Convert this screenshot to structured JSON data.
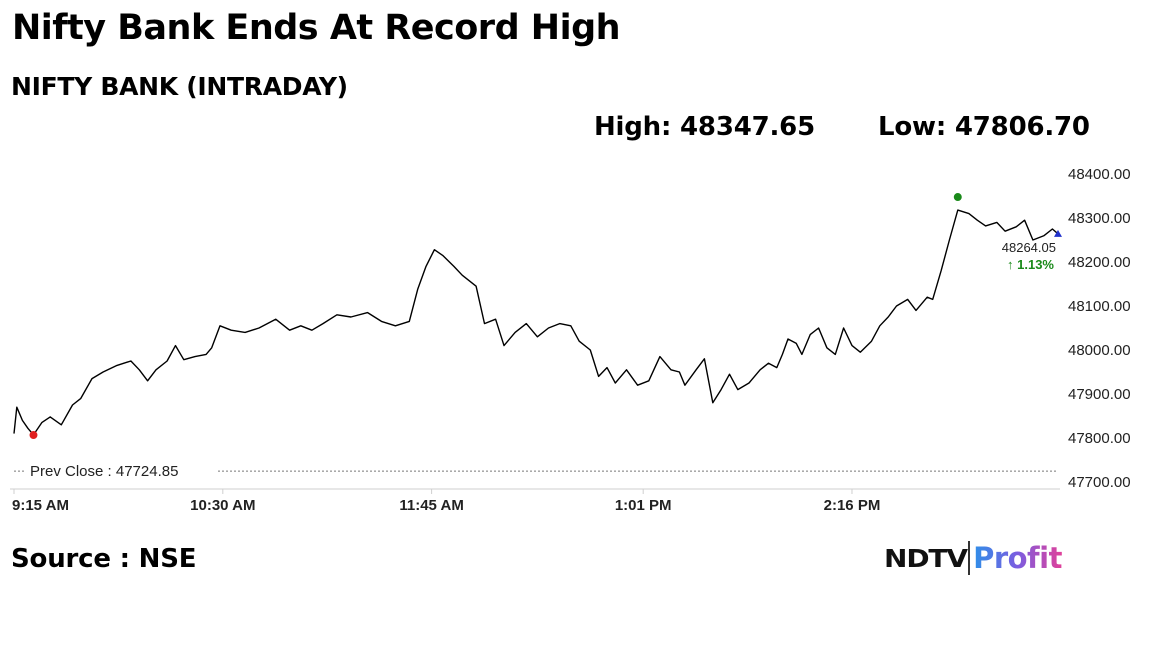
{
  "headline": "Nifty Bank Ends At Record High",
  "subtitle": "NIFTY BANK (INTRADAY)",
  "stats": {
    "high_label": "High: 48347.65",
    "low_label": "Low: 47806.70"
  },
  "source": "Source : NSE",
  "logo": {
    "ndtv": "NDTV",
    "profit": "Profit",
    "colors": {
      "ndtv": "#111111",
      "profit_start": "#2f8fe8",
      "profit_end": "#e0419a"
    }
  },
  "chart_data": {
    "type": "line",
    "title": "NIFTY BANK (INTRADAY)",
    "xlabel": "",
    "ylabel": "",
    "ylim": [
      47700,
      48400
    ],
    "y_ticks": [
      "47700.00",
      "47800.00",
      "47900.00",
      "48000.00",
      "48100.00",
      "48200.00",
      "48300.00",
      "48400.00"
    ],
    "x_ticks": [
      {
        "time": "9:15",
        "label": "9:15 AM"
      },
      {
        "time": "10:30",
        "label": "10:30 AM"
      },
      {
        "time": "11:45",
        "label": "11:45 AM"
      },
      {
        "time": "13:01",
        "label": "1:01 PM"
      },
      {
        "time": "14:16",
        "label": "2:16 PM"
      }
    ],
    "x_range": [
      "9:15",
      "15:30"
    ],
    "grid": false,
    "legend": "none",
    "line_color": "#000000",
    "prev_close": {
      "label": "Prev Close : 47724.85",
      "value": 47724.85
    },
    "last_value": {
      "label": "48264.05",
      "change_label": "↑ 1.13%",
      "value": 48264.05,
      "time": "15:30",
      "change_color": "#1a8a1a"
    },
    "high_marker": {
      "time": "14:54",
      "value": 48347.65,
      "color": "#1a8a1a"
    },
    "low_marker": {
      "time": "9:22",
      "value": 47806.7,
      "color": "#e02020"
    },
    "last_marker_color": "#2233cc",
    "x": [
      "9:15",
      "9:16",
      "9:18",
      "9:20",
      "9:22",
      "9:25",
      "9:28",
      "9:32",
      "9:36",
      "9:39",
      "9:43",
      "9:47",
      "9:52",
      "9:57",
      "10:00",
      "10:03",
      "10:06",
      "10:10",
      "10:13",
      "10:16",
      "10:20",
      "10:24",
      "10:26",
      "10:29",
      "10:33",
      "10:38",
      "10:43",
      "10:49",
      "10:54",
      "10:58",
      "11:02",
      "11:06",
      "11:11",
      "11:16",
      "11:22",
      "11:27",
      "11:32",
      "11:37",
      "11:40",
      "11:43",
      "11:46",
      "11:49",
      "11:53",
      "11:56",
      "12:01",
      "12:04",
      "12:08",
      "12:11",
      "12:15",
      "12:19",
      "12:23",
      "12:27",
      "12:31",
      "12:35",
      "12:38",
      "12:42",
      "12:45",
      "12:48",
      "12:51",
      "12:55",
      "12:59",
      "13:03",
      "13:07",
      "13:11",
      "13:14",
      "13:16",
      "13:20",
      "13:23",
      "13:26",
      "13:29",
      "13:32",
      "13:35",
      "13:39",
      "13:43",
      "13:46",
      "13:49",
      "13:51",
      "13:53",
      "13:56",
      "13:58",
      "14:01",
      "14:04",
      "14:07",
      "14:10",
      "14:13",
      "14:16",
      "14:19",
      "14:23",
      "14:26",
      "14:29",
      "14:32",
      "14:36",
      "14:39",
      "14:41",
      "14:43",
      "14:45",
      "14:48",
      "14:51",
      "14:54",
      "14:58",
      "15:01",
      "15:04",
      "15:08",
      "15:11",
      "15:15",
      "15:18",
      "15:21",
      "15:25",
      "15:28",
      "15:30"
    ],
    "values": [
      47810,
      47870,
      47840,
      47822,
      47807,
      47835,
      47848,
      47830,
      47875,
      47890,
      47935,
      47950,
      47965,
      47975,
      47955,
      47930,
      47955,
      47975,
      48010,
      47978,
      47985,
      47990,
      48005,
      48055,
      48045,
      48040,
      48050,
      48070,
      48045,
      48055,
      48045,
      48060,
      48080,
      48075,
      48085,
      48065,
      48055,
      48065,
      48138,
      48190,
      48228,
      48215,
      48190,
      48170,
      48145,
      48060,
      48070,
      48010,
      48040,
      48060,
      48030,
      48050,
      48060,
      48055,
      48020,
      48000,
      47940,
      47960,
      47925,
      47955,
      47920,
      47930,
      47985,
      47955,
      47950,
      47920,
      47955,
      47980,
      47880,
      47910,
      47945,
      47910,
      47925,
      47955,
      47970,
      47960,
      47990,
      48025,
      48015,
      47990,
      48035,
      48050,
      48005,
      47990,
      48050,
      48010,
      47995,
      48020,
      48055,
      48075,
      48100,
      48115,
      48090,
      48105,
      48120,
      48115,
      48180,
      48250,
      48318,
      48310,
      48295,
      48282,
      48290,
      48270,
      48280,
      48295,
      48250,
      48260,
      48275,
      48264
    ]
  }
}
